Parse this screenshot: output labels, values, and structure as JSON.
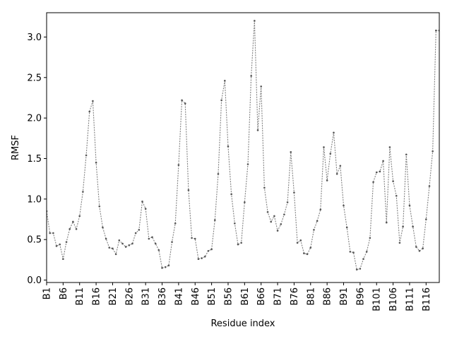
{
  "chart_data": {
    "type": "line",
    "xlabel": "Residue index",
    "ylabel": "RMSF",
    "ylim": [
      -0.03,
      3.3
    ],
    "xlim": [
      1,
      120
    ],
    "grid": false,
    "yticks": [
      0.0,
      0.5,
      1.0,
      1.5,
      2.0,
      2.5,
      3.0
    ],
    "ytick_labels": [
      "0.0",
      "0.5",
      "1.0",
      "1.5",
      "2.0",
      "2.5",
      "3.0"
    ],
    "xticks": [
      1,
      6,
      11,
      16,
      21,
      26,
      31,
      36,
      41,
      46,
      51,
      56,
      61,
      66,
      71,
      76,
      81,
      86,
      91,
      96,
      101,
      106,
      111,
      116
    ],
    "xtick_labels": [
      "B1",
      "B6",
      "B11",
      "B16",
      "B21",
      "B26",
      "B31",
      "B36",
      "B41",
      "B46",
      "B51",
      "B56",
      "B61",
      "B66",
      "B71",
      "B76",
      "B81",
      "B86",
      "B91",
      "B96",
      "B101",
      "B106",
      "B111",
      "B116"
    ],
    "line_color": "#808080",
    "marker_color": "#555555",
    "x": [
      1,
      2,
      3,
      4,
      5,
      6,
      7,
      8,
      9,
      10,
      11,
      12,
      13,
      14,
      15,
      16,
      17,
      18,
      19,
      20,
      21,
      22,
      23,
      24,
      25,
      26,
      27,
      28,
      29,
      30,
      31,
      32,
      33,
      34,
      35,
      36,
      37,
      38,
      39,
      40,
      41,
      42,
      43,
      44,
      45,
      46,
      47,
      48,
      49,
      50,
      51,
      52,
      53,
      54,
      55,
      56,
      57,
      58,
      59,
      60,
      61,
      62,
      63,
      64,
      65,
      66,
      67,
      68,
      69,
      70,
      71,
      72,
      73,
      74,
      75,
      76,
      77,
      78,
      79,
      80,
      81,
      82,
      83,
      84,
      85,
      86,
      87,
      88,
      89,
      90,
      91,
      92,
      93,
      94,
      95,
      96,
      97,
      98,
      99,
      100,
      101,
      102,
      103,
      104,
      105,
      106,
      107,
      108,
      109,
      110,
      111,
      112,
      113,
      114,
      115,
      116,
      117,
      118,
      119,
      120
    ],
    "y": [
      0.85,
      0.58,
      0.58,
      0.42,
      0.44,
      0.26,
      0.47,
      0.63,
      0.72,
      0.63,
      0.79,
      1.09,
      1.54,
      2.08,
      2.21,
      1.45,
      0.91,
      0.65,
      0.51,
      0.4,
      0.39,
      0.32,
      0.49,
      0.45,
      0.41,
      0.43,
      0.45,
      0.58,
      0.62,
      0.97,
      0.88,
      0.51,
      0.53,
      0.45,
      0.37,
      0.15,
      0.16,
      0.18,
      0.47,
      0.7,
      1.42,
      2.22,
      2.18,
      1.11,
      0.52,
      0.51,
      0.26,
      0.27,
      0.29,
      0.36,
      0.38,
      0.74,
      1.31,
      2.22,
      2.46,
      1.65,
      1.06,
      0.7,
      0.44,
      0.46,
      0.96,
      1.43,
      2.52,
      3.2,
      1.85,
      2.39,
      1.14,
      0.84,
      0.72,
      0.79,
      0.61,
      0.69,
      0.81,
      0.96,
      1.58,
      1.08,
      0.46,
      0.49,
      0.33,
      0.32,
      0.4,
      0.62,
      0.73,
      0.87,
      1.64,
      1.23,
      1.56,
      1.82,
      1.31,
      1.41,
      0.92,
      0.65,
      0.35,
      0.34,
      0.13,
      0.14,
      0.26,
      0.35,
      0.52,
      1.21,
      1.33,
      1.34,
      1.47,
      0.71,
      1.64,
      1.22,
      1.04,
      0.46,
      0.66,
      1.55,
      0.92,
      0.66,
      0.41,
      0.36,
      0.39,
      0.75,
      1.16,
      1.59,
      3.08,
      3.08
    ]
  }
}
